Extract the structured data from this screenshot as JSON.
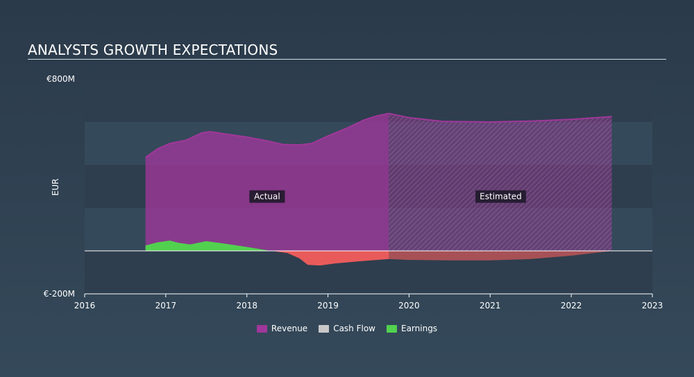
{
  "header": {
    "title": "ANALYSTS GROWTH EXPECTATIONS"
  },
  "chart_data": {
    "type": "area",
    "title": "ANALYSTS GROWTH EXPECTATIONS",
    "ylabel": "EUR",
    "ylim": [
      -200,
      800
    ],
    "xlim": [
      2016,
      2023
    ],
    "y_tick_labels": [
      {
        "value": 800,
        "label": "€800M"
      },
      {
        "value": -200,
        "label": "€-200M"
      }
    ],
    "x_tick_labels": [
      "2016",
      "2017",
      "2018",
      "2019",
      "2020",
      "2021",
      "2022",
      "2023"
    ],
    "actual_end": 2019.75,
    "region_labels": {
      "actual": "Actual",
      "estimated": "Estimated"
    },
    "series": [
      {
        "name": "Revenue",
        "color": "#a0379a",
        "points": [
          [
            2016.75,
            435
          ],
          [
            2016.9,
            475
          ],
          [
            2017.05,
            500
          ],
          [
            2017.25,
            515
          ],
          [
            2017.45,
            550
          ],
          [
            2017.55,
            555
          ],
          [
            2017.75,
            543
          ],
          [
            2018.0,
            530
          ],
          [
            2018.25,
            512
          ],
          [
            2018.45,
            495
          ],
          [
            2018.65,
            493
          ],
          [
            2018.8,
            500
          ],
          [
            2019.0,
            535
          ],
          [
            2019.25,
            574
          ],
          [
            2019.45,
            610
          ],
          [
            2019.6,
            628
          ],
          [
            2019.75,
            640
          ],
          [
            2020.0,
            620
          ],
          [
            2020.4,
            603
          ],
          [
            2021.0,
            600
          ],
          [
            2021.5,
            604
          ],
          [
            2022.0,
            612
          ],
          [
            2022.5,
            625
          ]
        ]
      },
      {
        "name": "Cash Flow",
        "color": "#c8c8c8",
        "points": []
      },
      {
        "name": "Earnings",
        "color": "#52d14f",
        "negative_color": "#e95b5b",
        "points": [
          [
            2016.75,
            25
          ],
          [
            2016.9,
            40
          ],
          [
            2017.05,
            48
          ],
          [
            2017.15,
            38
          ],
          [
            2017.3,
            30
          ],
          [
            2017.5,
            45
          ],
          [
            2017.7,
            35
          ],
          [
            2018.0,
            18
          ],
          [
            2018.3,
            0
          ],
          [
            2018.5,
            -10
          ],
          [
            2018.65,
            -35
          ],
          [
            2018.75,
            -65
          ],
          [
            2018.9,
            -68
          ],
          [
            2019.1,
            -58
          ],
          [
            2019.5,
            -45
          ],
          [
            2019.75,
            -38
          ],
          [
            2020.0,
            -42
          ],
          [
            2020.5,
            -44
          ],
          [
            2021.0,
            -44
          ],
          [
            2021.5,
            -38
          ],
          [
            2022.0,
            -22
          ],
          [
            2022.5,
            0
          ]
        ]
      }
    ],
    "legend": {
      "position": "bottom",
      "entries": [
        "Revenue",
        "Cash Flow",
        "Earnings"
      ]
    }
  }
}
